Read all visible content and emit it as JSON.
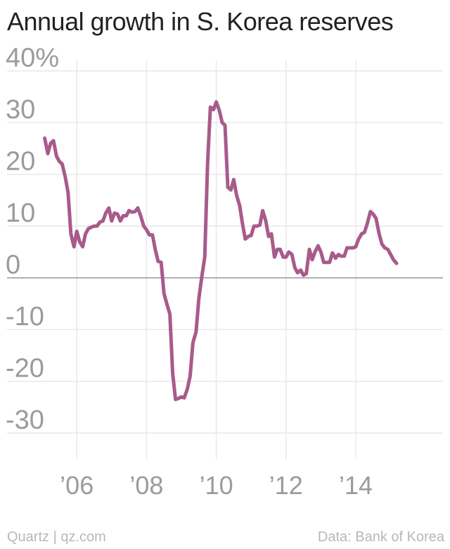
{
  "header": {
    "title": "Annual growth in S. Korea reserves"
  },
  "footer": {
    "credit": "Quartz | qz.com",
    "source": "Data: Bank of Korea"
  },
  "colors": {
    "line": "#a85b8b",
    "grid": "#e8e8e8",
    "zero": "#999999",
    "tick_text": "#9b9b9b"
  },
  "chart_data": {
    "type": "line",
    "title": "Annual growth in S. Korea reserves",
    "xlabel": "",
    "ylabel": "",
    "ylim": [
      -35,
      42
    ],
    "xlim": [
      2004.0,
      2016.5
    ],
    "grid": true,
    "y_ticks": [
      {
        "value": 40,
        "label": "40%"
      },
      {
        "value": 30,
        "label": "30"
      },
      {
        "value": 20,
        "label": "20"
      },
      {
        "value": 10,
        "label": "10"
      },
      {
        "value": 0,
        "label": "0"
      },
      {
        "value": -10,
        "label": "-10"
      },
      {
        "value": -20,
        "label": "-20"
      },
      {
        "value": -30,
        "label": "-30"
      }
    ],
    "x_ticks": [
      {
        "value": 2006,
        "label": "’06"
      },
      {
        "value": 2008,
        "label": "’08"
      },
      {
        "value": 2010,
        "label": "’10"
      },
      {
        "value": 2012,
        "label": "’12"
      },
      {
        "value": 2014,
        "label": "’14"
      }
    ],
    "series": [
      {
        "points": [
          [
            2005.08,
            27
          ],
          [
            2005.17,
            24
          ],
          [
            2005.25,
            26
          ],
          [
            2005.33,
            26.5
          ],
          [
            2005.42,
            23.5
          ],
          [
            2005.5,
            22.5
          ],
          [
            2005.58,
            22
          ],
          [
            2005.67,
            19.5
          ],
          [
            2005.75,
            16.5
          ],
          [
            2005.83,
            8.5
          ],
          [
            2005.92,
            6
          ],
          [
            2006.0,
            9
          ],
          [
            2006.08,
            7
          ],
          [
            2006.17,
            6
          ],
          [
            2006.25,
            8.5
          ],
          [
            2006.33,
            9.5
          ],
          [
            2006.42,
            9.8
          ],
          [
            2006.5,
            10
          ],
          [
            2006.58,
            10
          ],
          [
            2006.67,
            10.8
          ],
          [
            2006.75,
            11
          ],
          [
            2006.83,
            12.5
          ],
          [
            2006.92,
            13.5
          ],
          [
            2007.0,
            11
          ],
          [
            2007.08,
            12.5
          ],
          [
            2007.17,
            12.3
          ],
          [
            2007.25,
            11
          ],
          [
            2007.33,
            12
          ],
          [
            2007.42,
            12
          ],
          [
            2007.5,
            13
          ],
          [
            2007.58,
            12.7
          ],
          [
            2007.67,
            12.8
          ],
          [
            2007.75,
            13.5
          ],
          [
            2007.83,
            12
          ],
          [
            2007.92,
            10
          ],
          [
            2008.0,
            9.3
          ],
          [
            2008.08,
            8.3
          ],
          [
            2008.17,
            8.3
          ],
          [
            2008.25,
            5.5
          ],
          [
            2008.33,
            3.2
          ],
          [
            2008.42,
            3
          ],
          [
            2008.5,
            -3
          ],
          [
            2008.58,
            -5
          ],
          [
            2008.67,
            -7
          ],
          [
            2008.75,
            -18.5
          ],
          [
            2008.83,
            -23.5
          ],
          [
            2008.92,
            -23.3
          ],
          [
            2009.0,
            -23
          ],
          [
            2009.08,
            -23.2
          ],
          [
            2009.17,
            -21.5
          ],
          [
            2009.25,
            -19
          ],
          [
            2009.33,
            -12.5
          ],
          [
            2009.42,
            -10.5
          ],
          [
            2009.5,
            -4
          ],
          [
            2009.58,
            0
          ],
          [
            2009.67,
            4
          ],
          [
            2009.75,
            22
          ],
          [
            2009.83,
            33
          ],
          [
            2009.92,
            32.5
          ],
          [
            2010.0,
            34
          ],
          [
            2010.08,
            32.5
          ],
          [
            2010.17,
            30
          ],
          [
            2010.25,
            29.5
          ],
          [
            2010.33,
            17.5
          ],
          [
            2010.42,
            17
          ],
          [
            2010.5,
            19
          ],
          [
            2010.58,
            16
          ],
          [
            2010.67,
            14
          ],
          [
            2010.75,
            10.5
          ],
          [
            2010.83,
            7.5
          ],
          [
            2010.92,
            8
          ],
          [
            2011.0,
            8.2
          ],
          [
            2011.08,
            10
          ],
          [
            2011.17,
            10
          ],
          [
            2011.25,
            10.2
          ],
          [
            2011.33,
            13
          ],
          [
            2011.42,
            11
          ],
          [
            2011.5,
            8
          ],
          [
            2011.58,
            8.5
          ],
          [
            2011.67,
            4
          ],
          [
            2011.75,
            5.5
          ],
          [
            2011.83,
            5.5
          ],
          [
            2011.92,
            4
          ],
          [
            2012.0,
            4
          ],
          [
            2012.08,
            5
          ],
          [
            2012.17,
            4.5
          ],
          [
            2012.25,
            2
          ],
          [
            2012.33,
            1
          ],
          [
            2012.42,
            1.5
          ],
          [
            2012.5,
            0.5
          ],
          [
            2012.58,
            0.8
          ],
          [
            2012.67,
            5.5
          ],
          [
            2012.75,
            3.5
          ],
          [
            2012.83,
            5
          ],
          [
            2012.92,
            6.2
          ],
          [
            2013.0,
            5
          ],
          [
            2013.08,
            3
          ],
          [
            2013.17,
            3
          ],
          [
            2013.25,
            3
          ],
          [
            2013.33,
            4.8
          ],
          [
            2013.42,
            3.8
          ],
          [
            2013.5,
            4.5
          ],
          [
            2013.58,
            4.2
          ],
          [
            2013.67,
            4.2
          ],
          [
            2013.75,
            5.8
          ],
          [
            2013.83,
            5.8
          ],
          [
            2013.92,
            5.8
          ],
          [
            2014.0,
            6
          ],
          [
            2014.08,
            7.5
          ],
          [
            2014.17,
            8.5
          ],
          [
            2014.25,
            8.8
          ],
          [
            2014.33,
            10.5
          ],
          [
            2014.42,
            12.8
          ],
          [
            2014.5,
            12.3
          ],
          [
            2014.58,
            11.5
          ],
          [
            2014.67,
            8.5
          ],
          [
            2014.75,
            6.5
          ],
          [
            2014.83,
            5.8
          ],
          [
            2014.92,
            5.5
          ],
          [
            2015.0,
            4.5
          ],
          [
            2015.08,
            3.5
          ],
          [
            2015.17,
            2.8
          ]
        ]
      }
    ]
  }
}
